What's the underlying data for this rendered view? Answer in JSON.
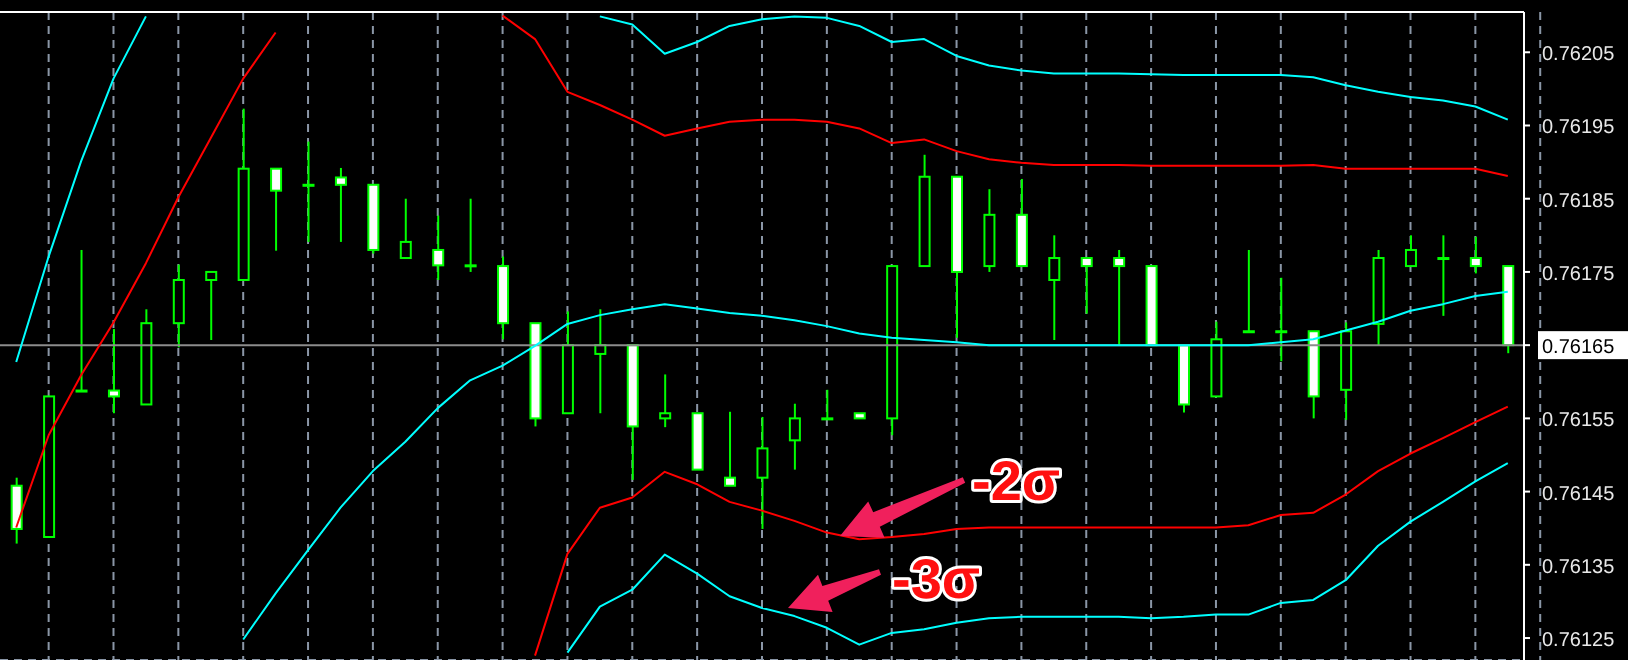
{
  "chart_data": {
    "type": "candlestick",
    "categories": [
      null,
      null,
      null,
      null,
      null,
      null,
      null,
      null,
      null,
      null,
      null,
      null,
      null,
      null,
      null,
      null,
      null,
      null,
      null,
      null,
      null,
      null,
      null,
      null,
      null,
      null,
      null,
      null,
      null,
      null,
      null,
      null,
      null,
      null,
      null,
      null,
      null,
      null,
      null,
      null,
      null,
      null,
      null,
      null,
      null,
      null,
      null
    ],
    "color": "#00ff00",
    "ohlc": [
      [
        0.761458,
        0.761469,
        0.761379,
        0.761399
      ],
      [
        0.761388,
        0.76158,
        0.761388,
        0.76158
      ],
      [
        0.761588,
        0.76178,
        0.761588,
        0.761588
      ],
      [
        0.761588,
        0.761672,
        0.761557,
        0.76158
      ],
      [
        0.761569,
        0.761699,
        0.761569,
        0.76168
      ],
      [
        0.76168,
        0.76176,
        0.761647,
        0.761739
      ],
      [
        0.761739,
        0.76175,
        0.761657,
        0.76175
      ],
      [
        0.761739,
        0.761973,
        0.761739,
        0.761891
      ],
      [
        0.761891,
        0.761891,
        0.761779,
        0.761861
      ],
      [
        0.761869,
        0.761928,
        0.761791,
        0.761869
      ],
      [
        0.761879,
        0.761892,
        0.761791,
        0.761869
      ],
      [
        0.761869,
        0.761869,
        0.761775,
        0.76178
      ],
      [
        0.761769,
        0.76185,
        0.761769,
        0.761791
      ],
      [
        0.76178,
        0.761827,
        0.761739,
        0.761759
      ],
      [
        0.761759,
        0.76185,
        0.76175,
        0.761759
      ],
      [
        0.761758,
        0.761771,
        0.761658,
        0.76168
      ],
      [
        0.76168,
        0.76168,
        0.761539,
        0.76155
      ],
      [
        0.761557,
        0.761696,
        0.761557,
        0.76165
      ],
      [
        0.761638,
        0.761699,
        0.761557,
        0.76165
      ],
      [
        0.76165,
        0.76165,
        0.761466,
        0.761539
      ],
      [
        0.76155,
        0.76161,
        0.761538,
        0.761557
      ],
      [
        0.761557,
        0.761557,
        0.76148,
        0.76148
      ],
      [
        0.761469,
        0.761559,
        0.761458,
        0.761458
      ],
      [
        0.761469,
        0.761552,
        0.761399,
        0.761509
      ],
      [
        0.76152,
        0.76157,
        0.76148,
        0.76155
      ],
      [
        0.76155,
        0.761589,
        0.76155,
        0.76155
      ],
      [
        0.761557,
        0.761557,
        0.76155,
        0.76155
      ],
      [
        0.76155,
        0.761758,
        0.761527,
        0.761758
      ],
      [
        0.761758,
        0.76191,
        0.761758,
        0.76188
      ],
      [
        0.76188,
        0.76188,
        0.76166,
        0.76175
      ],
      [
        0.761758,
        0.761863,
        0.76175,
        0.761828
      ],
      [
        0.761828,
        0.761877,
        0.761758,
        0.761758
      ],
      [
        0.761739,
        0.7618,
        0.761657,
        0.761769
      ],
      [
        0.761769,
        0.761769,
        0.761693,
        0.761758
      ],
      [
        0.761769,
        0.76178,
        0.76165,
        0.761758
      ],
      [
        0.761758,
        0.761758,
        0.76165,
        0.76165
      ],
      [
        0.76165,
        0.76165,
        0.761558,
        0.761569
      ],
      [
        0.76158,
        0.761682,
        0.76158,
        0.761658
      ],
      [
        0.761669,
        0.76178,
        0.761669,
        0.761669
      ],
      [
        0.761669,
        0.761742,
        0.761628,
        0.761669
      ],
      [
        0.761669,
        0.761669,
        0.76155,
        0.76158
      ],
      [
        0.761589,
        0.761681,
        0.761548,
        0.761669
      ],
      [
        0.761679,
        0.76178,
        0.76165,
        0.761769
      ],
      [
        0.761758,
        0.7618,
        0.761758,
        0.76178
      ],
      [
        0.761769,
        0.7618,
        0.76169,
        0.761769
      ],
      [
        0.761769,
        0.761798,
        0.761748,
        0.761758
      ],
      [
        0.761758,
        0.761758,
        0.761639,
        0.76165
      ]
    ],
    "series": [
      {
        "type": "line",
        "color": "#00ffff",
        "values": [
          0.761627,
          0.761771,
          0.761901,
          0.762014,
          0.762099,
          null,
          null,
          null,
          null,
          null,
          null,
          null,
          null,
          null,
          null,
          null,
          null,
          null,
          0.762099,
          0.762088,
          0.762048,
          0.762064,
          0.762086,
          0.762095,
          0.762099,
          0.762097,
          0.762086,
          0.762064,
          0.762068,
          0.762045,
          0.762032,
          0.762025,
          0.762021,
          0.762021,
          0.762021,
          0.76202,
          0.762019,
          0.762019,
          0.762019,
          0.762019,
          0.762016,
          0.762005,
          0.761996,
          0.761989,
          0.761984,
          0.761976,
          0.761958
        ]
      },
      {
        "type": "line",
        "color": "#ff0000",
        "values": [
          0.761401,
          0.761527,
          0.761609,
          0.761681,
          0.761762,
          0.761852,
          0.761933,
          0.762014,
          0.762077,
          null,
          null,
          null,
          null,
          null,
          null,
          0.7621,
          0.762068,
          0.761996,
          0.761978,
          0.761958,
          0.761936,
          0.761946,
          0.761955,
          0.761958,
          0.761958,
          0.761955,
          0.761946,
          0.761926,
          0.761931,
          0.761915,
          0.761904,
          0.761899,
          0.761896,
          0.761896,
          0.761896,
          0.761895,
          0.761895,
          0.761895,
          0.761895,
          0.761895,
          0.761896,
          0.761891,
          0.761891,
          0.761891,
          0.761891,
          0.761891,
          0.761881
        ]
      },
      {
        "type": "line",
        "color": "#00ffff",
        "values": [
          null,
          null,
          null,
          null,
          null,
          null,
          null,
          0.761248,
          0.761311,
          0.76137,
          0.761428,
          0.761478,
          0.761518,
          0.761564,
          0.761602,
          0.761622,
          0.761649,
          0.761679,
          0.761691,
          0.761699,
          0.761706,
          0.7617,
          0.761694,
          0.76169,
          0.761684,
          0.761676,
          0.761666,
          0.76166,
          0.761657,
          0.761654,
          0.76165,
          0.76165,
          0.76165,
          0.76165,
          0.76165,
          0.76165,
          0.76165,
          0.76165,
          0.76165,
          0.761654,
          0.761658,
          0.76167,
          0.761682,
          0.761697,
          0.761706,
          0.761717,
          0.761723
        ]
      },
      {
        "type": "line",
        "color": "#ff0000",
        "values": [
          null,
          null,
          null,
          null,
          null,
          null,
          null,
          null,
          null,
          null,
          null,
          null,
          null,
          null,
          null,
          null,
          0.761226,
          0.761365,
          0.761428,
          0.761442,
          0.761477,
          0.76146,
          0.761436,
          0.761424,
          0.76141,
          0.761394,
          0.761385,
          0.761388,
          0.761392,
          0.761399,
          0.761401,
          0.761401,
          0.761401,
          0.761401,
          0.761401,
          0.761401,
          0.761401,
          0.761401,
          0.761404,
          0.761418,
          0.761421,
          0.761446,
          0.761478,
          0.761502,
          0.761523,
          0.761545,
          0.761566
        ]
      },
      {
        "type": "line",
        "color": "#00ffff",
        "values": [
          null,
          null,
          null,
          null,
          null,
          null,
          null,
          null,
          null,
          null,
          null,
          null,
          null,
          null,
          null,
          null,
          null,
          0.76123,
          0.761293,
          0.761316,
          0.761364,
          0.761338,
          0.761307,
          0.761291,
          0.76128,
          0.761264,
          0.761241,
          0.761257,
          0.761262,
          0.761271,
          0.761277,
          0.761279,
          0.761279,
          0.761279,
          0.761279,
          0.761277,
          0.761279,
          0.761282,
          0.761282,
          0.761298,
          0.761302,
          0.761329,
          0.761376,
          0.761409,
          0.761436,
          0.761464,
          0.761489
        ]
      }
    ],
    "ylim": [
      0.76122,
      0.762105
    ],
    "yticks": [
      0.76125,
      0.76135,
      0.76145,
      0.76155,
      0.76165,
      0.76175,
      0.76185,
      0.76195,
      0.76205
    ],
    "ref_lines": [
      {
        "axis": "y",
        "value": 0.76165,
        "color": "#8c8c8c"
      }
    ],
    "grid": true,
    "tick_labels": "y",
    "annotations": [
      "-2σ",
      "-3σ"
    ]
  }
}
